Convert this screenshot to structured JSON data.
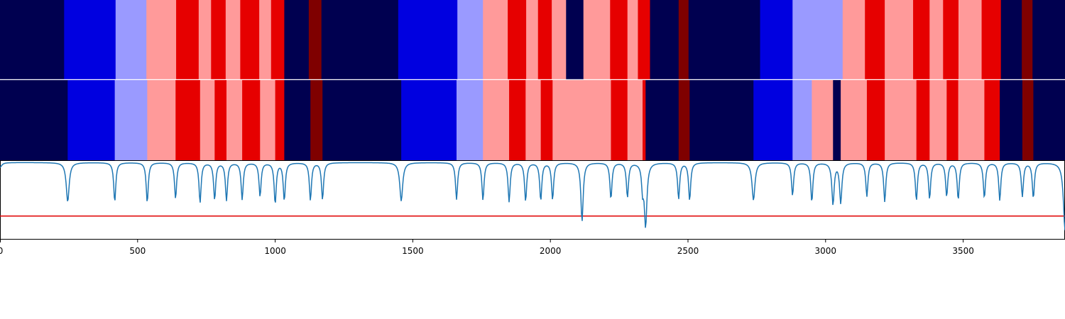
{
  "chart_data": {
    "type": "heatmap",
    "title": "",
    "xlabel": "",
    "ylabel": "",
    "xlim": [
      0,
      3870
    ],
    "xticks": [
      0,
      500,
      1000,
      1500,
      2000,
      2500,
      3000,
      3500
    ],
    "xtick_labels": [
      "0",
      "500",
      "1000",
      "1500",
      "2000",
      "2500",
      "3000",
      "3500"
    ],
    "grid": false,
    "legend": "none",
    "colors": {
      "dark_navy": "#000050",
      "blue": "#0000e0",
      "light_blue": "#9a9aff",
      "light_red": "#ff9a9a",
      "red": "#e60000",
      "dark_red": "#7f0000",
      "line": "#1f77b4",
      "threshold": "#e00000"
    },
    "state_rows": [
      {
        "segments": [
          [
            0,
            233,
            "dark_navy"
          ],
          [
            233,
            420,
            "blue"
          ],
          [
            420,
            532,
            "light_blue"
          ],
          [
            532,
            640,
            "light_red"
          ],
          [
            640,
            722,
            "red"
          ],
          [
            722,
            767,
            "light_red"
          ],
          [
            767,
            820,
            "red"
          ],
          [
            820,
            873,
            "light_red"
          ],
          [
            873,
            942,
            "red"
          ],
          [
            942,
            985,
            "light_red"
          ],
          [
            985,
            1033,
            "red"
          ],
          [
            1033,
            1122,
            "dark_navy"
          ],
          [
            1122,
            1168,
            "dark_red"
          ],
          [
            1168,
            1447,
            "dark_navy"
          ],
          [
            1447,
            1662,
            "blue"
          ],
          [
            1662,
            1755,
            "light_blue"
          ],
          [
            1755,
            1845,
            "light_red"
          ],
          [
            1845,
            1912,
            "red"
          ],
          [
            1912,
            1955,
            "light_red"
          ],
          [
            1955,
            2005,
            "red"
          ],
          [
            2005,
            2057,
            "light_red"
          ],
          [
            2057,
            2120,
            "dark_navy"
          ],
          [
            2120,
            2217,
            "light_red"
          ],
          [
            2217,
            2280,
            "red"
          ],
          [
            2280,
            2318,
            "light_red"
          ],
          [
            2318,
            2362,
            "red"
          ],
          [
            2362,
            2466,
            "dark_navy"
          ],
          [
            2466,
            2502,
            "dark_red"
          ],
          [
            2502,
            2762,
            "dark_navy"
          ],
          [
            2762,
            2880,
            "blue"
          ],
          [
            2880,
            3062,
            "light_blue"
          ],
          [
            3062,
            3143,
            "light_red"
          ],
          [
            3143,
            3215,
            "red"
          ],
          [
            3215,
            3318,
            "light_red"
          ],
          [
            3318,
            3378,
            "red"
          ],
          [
            3378,
            3427,
            "light_red"
          ],
          [
            3427,
            3483,
            "red"
          ],
          [
            3483,
            3567,
            "light_red"
          ],
          [
            3567,
            3637,
            "red"
          ],
          [
            3637,
            3713,
            "dark_navy"
          ],
          [
            3713,
            3752,
            "dark_red"
          ],
          [
            3752,
            3870,
            "dark_navy"
          ]
        ]
      },
      {
        "segments": [
          [
            0,
            246,
            "dark_navy"
          ],
          [
            246,
            417,
            "blue"
          ],
          [
            417,
            535,
            "light_blue"
          ],
          [
            535,
            638,
            "light_red"
          ],
          [
            638,
            727,
            "red"
          ],
          [
            727,
            780,
            "light_red"
          ],
          [
            780,
            823,
            "red"
          ],
          [
            823,
            880,
            "light_red"
          ],
          [
            880,
            945,
            "red"
          ],
          [
            945,
            1000,
            "light_red"
          ],
          [
            1000,
            1033,
            "red"
          ],
          [
            1033,
            1128,
            "dark_navy"
          ],
          [
            1128,
            1172,
            "dark_red"
          ],
          [
            1172,
            1458,
            "dark_navy"
          ],
          [
            1458,
            1659,
            "blue"
          ],
          [
            1659,
            1755,
            "light_blue"
          ],
          [
            1755,
            1850,
            "light_red"
          ],
          [
            1850,
            1910,
            "red"
          ],
          [
            1910,
            1965,
            "light_red"
          ],
          [
            1965,
            2008,
            "red"
          ],
          [
            2008,
            2220,
            "light_red"
          ],
          [
            2220,
            2280,
            "red"
          ],
          [
            2280,
            2335,
            "light_red"
          ],
          [
            2335,
            2346,
            "red"
          ],
          [
            2346,
            2466,
            "dark_navy"
          ],
          [
            2466,
            2506,
            "dark_red"
          ],
          [
            2506,
            2738,
            "dark_navy"
          ],
          [
            2738,
            2880,
            "blue"
          ],
          [
            2880,
            2950,
            "light_blue"
          ],
          [
            2950,
            3027,
            "light_red"
          ],
          [
            3027,
            3055,
            "dark_navy"
          ],
          [
            3055,
            3150,
            "light_red"
          ],
          [
            3150,
            3215,
            "red"
          ],
          [
            3215,
            3330,
            "light_red"
          ],
          [
            3330,
            3378,
            "red"
          ],
          [
            3378,
            3440,
            "light_red"
          ],
          [
            3440,
            3482,
            "red"
          ],
          [
            3482,
            3577,
            "light_red"
          ],
          [
            3577,
            3633,
            "red"
          ],
          [
            3633,
            3715,
            "dark_navy"
          ],
          [
            3715,
            3755,
            "dark_red"
          ],
          [
            3755,
            3870,
            "dark_navy"
          ]
        ]
      }
    ],
    "signal": {
      "baseline": 0.98,
      "threshold": 0.3,
      "ylim": [
        0,
        1
      ],
      "dips": [
        [
          0,
          0.92,
          35
        ],
        [
          246,
          0.48,
          28
        ],
        [
          417,
          0.48,
          20
        ],
        [
          535,
          0.47,
          20
        ],
        [
          638,
          0.52,
          20
        ],
        [
          727,
          0.47,
          20
        ],
        [
          780,
          0.51,
          20
        ],
        [
          823,
          0.5,
          20
        ],
        [
          880,
          0.51,
          20
        ],
        [
          945,
          0.55,
          20
        ],
        [
          1000,
          0.46,
          20
        ],
        [
          1033,
          0.5,
          20
        ],
        [
          1128,
          0.5,
          20
        ],
        [
          1172,
          0.51,
          20
        ],
        [
          1458,
          0.49,
          28
        ],
        [
          1659,
          0.51,
          20
        ],
        [
          1755,
          0.5,
          20
        ],
        [
          1850,
          0.48,
          20
        ],
        [
          1910,
          0.49,
          20
        ],
        [
          1965,
          0.5,
          20
        ],
        [
          2008,
          0.51,
          20
        ],
        [
          2115,
          0.23,
          22
        ],
        [
          2220,
          0.52,
          20
        ],
        [
          2280,
          0.54,
          20
        ],
        [
          2335,
          0.68,
          18
        ],
        [
          2346,
          0.18,
          25
        ],
        [
          2466,
          0.52,
          20
        ],
        [
          2506,
          0.5,
          20
        ],
        [
          2738,
          0.5,
          28
        ],
        [
          2880,
          0.56,
          20
        ],
        [
          2950,
          0.48,
          20
        ],
        [
          3027,
          0.45,
          22
        ],
        [
          3055,
          0.47,
          22
        ],
        [
          3150,
          0.55,
          20
        ],
        [
          3215,
          0.48,
          20
        ],
        [
          3330,
          0.5,
          20
        ],
        [
          3378,
          0.52,
          20
        ],
        [
          3440,
          0.55,
          20
        ],
        [
          3482,
          0.51,
          20
        ],
        [
          3577,
          0.53,
          20
        ],
        [
          3633,
          0.5,
          20
        ],
        [
          3715,
          0.55,
          20
        ],
        [
          3755,
          0.53,
          20
        ],
        [
          3870,
          0.12,
          30
        ]
      ]
    }
  }
}
